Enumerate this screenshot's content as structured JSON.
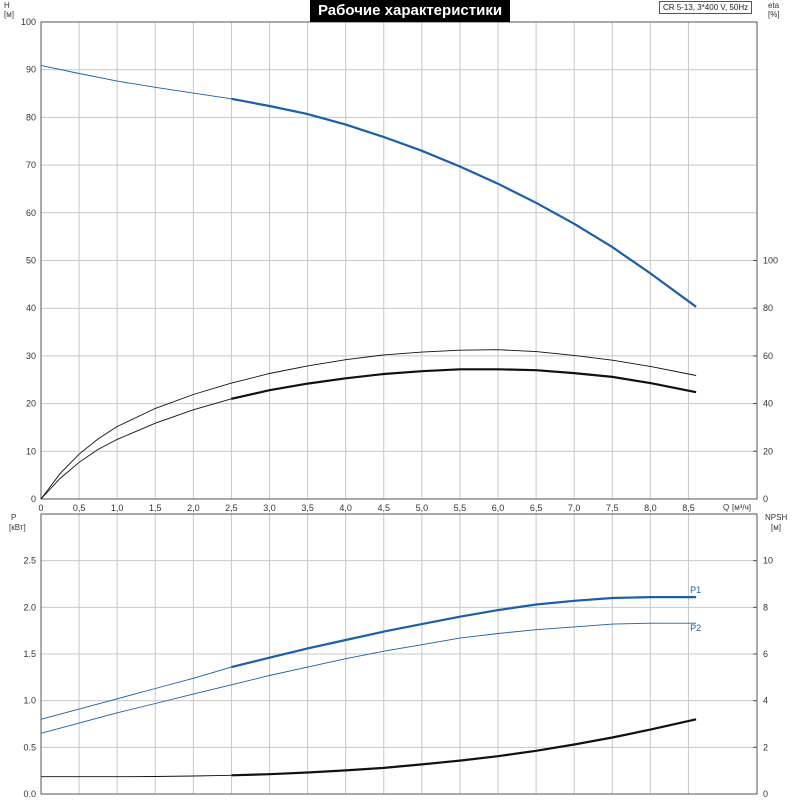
{
  "chart_data": {
    "type": "line",
    "title": "Рабочие характеристики",
    "subtitle": "CR 5-13, 3*400 V, 50Hz",
    "colors": {
      "blue": "#1a5fa8",
      "black": "#111111",
      "grid": "#c8c8c8",
      "title_bg": "#000000"
    },
    "top_panel": {
      "x_label": "Q",
      "x_unit": "[м³/ч]",
      "x_ticks": [
        "0",
        "0,5",
        "1,0",
        "1,5",
        "2,0",
        "2,5",
        "3,0",
        "3,5",
        "4,0",
        "4,5",
        "5,0",
        "5,5",
        "6,0",
        "6,5",
        "7,0",
        "7,5",
        "8,0",
        "8,5"
      ],
      "xlim": [
        0,
        9.4
      ],
      "left_axis": {
        "label": "H",
        "unit": "[м]",
        "ticks": [
          "0",
          "10",
          "20",
          "30",
          "40",
          "50",
          "60",
          "70",
          "80",
          "90",
          "100"
        ],
        "ylim": [
          0,
          100
        ]
      },
      "right_axis": {
        "label": "eta",
        "unit": "[%]",
        "ticks": [
          "0",
          "20",
          "40",
          "60",
          "80",
          "100"
        ],
        "ylim": [
          0,
          200
        ]
      },
      "series": [
        {
          "axis": "left",
          "color": "blue",
          "bold_from": 2.5,
          "points": [
            [
              0,
              90.9
            ],
            [
              0.5,
              89.2
            ],
            [
              1.0,
              87.6
            ],
            [
              1.5,
              86.3
            ],
            [
              2.0,
              85.1
            ],
            [
              2.5,
              83.9
            ],
            [
              3.0,
              82.4
            ],
            [
              3.5,
              80.7
            ],
            [
              4.0,
              78.5
            ],
            [
              4.5,
              75.9
            ],
            [
              5.0,
              73.0
            ],
            [
              5.5,
              69.7
            ],
            [
              6.0,
              66.1
            ],
            [
              6.5,
              62.1
            ],
            [
              7.0,
              57.7
            ],
            [
              7.5,
              52.8
            ],
            [
              8.0,
              47.3
            ],
            [
              8.6,
              40.3
            ]
          ]
        },
        {
          "axis": "left",
          "color": "black",
          "bold_from": 8.7,
          "points": [
            [
              0,
              0
            ],
            [
              0.25,
              5.3
            ],
            [
              0.5,
              9.4
            ],
            [
              0.75,
              12.6
            ],
            [
              1.0,
              15.2
            ],
            [
              1.5,
              19.0
            ],
            [
              2.0,
              21.9
            ],
            [
              2.5,
              24.3
            ],
            [
              3.0,
              26.3
            ],
            [
              3.5,
              27.9
            ],
            [
              4.0,
              29.2
            ],
            [
              4.5,
              30.2
            ],
            [
              5.0,
              30.8
            ],
            [
              5.5,
              31.2
            ],
            [
              6.0,
              31.3
            ],
            [
              6.5,
              30.9
            ],
            [
              7.0,
              30.1
            ],
            [
              7.5,
              29.1
            ],
            [
              8.0,
              27.8
            ],
            [
              8.6,
              25.9
            ]
          ]
        },
        {
          "axis": "left",
          "color": "black",
          "bold_from": 2.5,
          "points": [
            [
              0,
              0
            ],
            [
              0.25,
              4.3
            ],
            [
              0.5,
              7.7
            ],
            [
              0.75,
              10.4
            ],
            [
              1.0,
              12.5
            ],
            [
              1.5,
              15.9
            ],
            [
              2.0,
              18.7
            ],
            [
              2.5,
              21.0
            ],
            [
              3.0,
              22.8
            ],
            [
              3.5,
              24.2
            ],
            [
              4.0,
              25.3
            ],
            [
              4.5,
              26.2
            ],
            [
              5.0,
              26.8
            ],
            [
              5.5,
              27.2
            ],
            [
              6.0,
              27.2
            ],
            [
              6.5,
              27.0
            ],
            [
              7.0,
              26.4
            ],
            [
              7.5,
              25.6
            ],
            [
              8.0,
              24.3
            ],
            [
              8.6,
              22.4
            ]
          ]
        }
      ]
    },
    "bottom_panel": {
      "left_axis": {
        "label": "P",
        "unit": "[кВт]",
        "ticks": [
          "0.0",
          "0.5",
          "1.0",
          "1.5",
          "2.0",
          "2.5"
        ],
        "ylim": [
          0,
          3.0
        ]
      },
      "right_axis": {
        "label": "NPSH",
        "unit": "[м]",
        "ticks": [
          "0",
          "2",
          "4",
          "6",
          "8",
          "10"
        ],
        "ylim": [
          0,
          12
        ]
      },
      "series": [
        {
          "name": "P1",
          "axis": "left",
          "color": "blue",
          "bold_from": 2.5,
          "points": [
            [
              0,
              0.8
            ],
            [
              0.5,
              0.91
            ],
            [
              1.0,
              1.02
            ],
            [
              1.5,
              1.13
            ],
            [
              2.0,
              1.24
            ],
            [
              2.5,
              1.36
            ],
            [
              3.0,
              1.46
            ],
            [
              3.5,
              1.56
            ],
            [
              4.0,
              1.65
            ],
            [
              4.5,
              1.74
            ],
            [
              5.0,
              1.82
            ],
            [
              5.5,
              1.9
            ],
            [
              6.0,
              1.97
            ],
            [
              6.5,
              2.03
            ],
            [
              7.0,
              2.07
            ],
            [
              7.5,
              2.1
            ],
            [
              8.0,
              2.11
            ],
            [
              8.6,
              2.11
            ]
          ]
        },
        {
          "name": "P2",
          "axis": "left",
          "color": "blue",
          "bold_from": 8.7,
          "points": [
            [
              0,
              0.65
            ],
            [
              0.5,
              0.76
            ],
            [
              1.0,
              0.87
            ],
            [
              1.5,
              0.97
            ],
            [
              2.0,
              1.07
            ],
            [
              2.5,
              1.17
            ],
            [
              3.0,
              1.27
            ],
            [
              3.5,
              1.36
            ],
            [
              4.0,
              1.45
            ],
            [
              4.5,
              1.53
            ],
            [
              5.0,
              1.6
            ],
            [
              5.5,
              1.67
            ],
            [
              6.0,
              1.72
            ],
            [
              6.5,
              1.76
            ],
            [
              7.0,
              1.79
            ],
            [
              7.5,
              1.82
            ],
            [
              8.0,
              1.83
            ],
            [
              8.6,
              1.83
            ]
          ]
        },
        {
          "axis": "right",
          "color": "black",
          "bold_from": 2.5,
          "points": [
            [
              0,
              0.74
            ],
            [
              0.5,
              0.74
            ],
            [
              1.0,
              0.74
            ],
            [
              1.5,
              0.75
            ],
            [
              2.0,
              0.77
            ],
            [
              2.5,
              0.8
            ],
            [
              3.0,
              0.85
            ],
            [
              3.5,
              0.92
            ],
            [
              4.0,
              1.01
            ],
            [
              4.5,
              1.12
            ],
            [
              5.0,
              1.27
            ],
            [
              5.5,
              1.43
            ],
            [
              6.0,
              1.62
            ],
            [
              6.5,
              1.85
            ],
            [
              7.0,
              2.12
            ],
            [
              7.5,
              2.42
            ],
            [
              8.0,
              2.76
            ],
            [
              8.6,
              3.2
            ]
          ]
        }
      ]
    }
  }
}
